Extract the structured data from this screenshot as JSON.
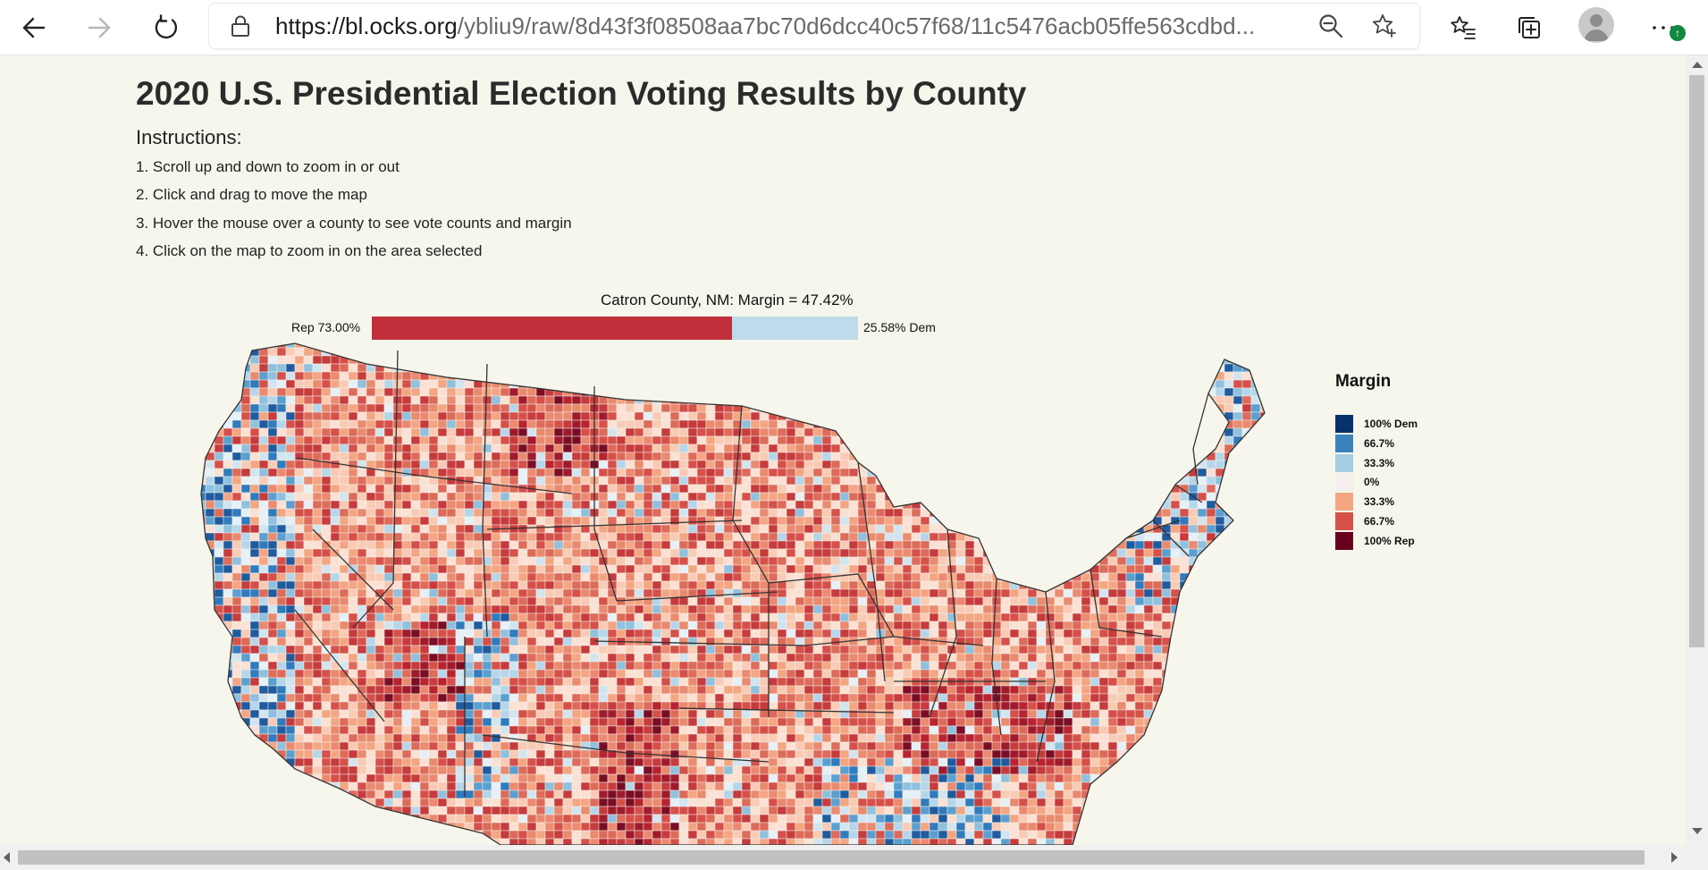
{
  "browser": {
    "url_host": "https://bl.ocks.org",
    "url_path": "/ybliu9/raw/8d43f3f08508aa7bc70d6dcc40c57f68/11c5476acb05ffe563cdbd...",
    "colors": {
      "toolbar_bg": "#ffffff",
      "update_badge": "#10893e"
    }
  },
  "page": {
    "title": "2020 U.S. Presidential Election Voting Results by County",
    "instructions_heading": "Instructions:",
    "instructions": [
      "1. Scroll up and down to zoom in or out",
      "2. Click and drag to move the map",
      "3. Hover the mouse over a county to see vote counts and margin",
      "4. Click on the map to zoom in on the area selected"
    ]
  },
  "tooltip": {
    "title": "Catron County, NM: Margin = 47.42%",
    "rep_label": "Rep 73.00%",
    "dem_label": "25.58% Dem",
    "rep_pct": 73.0,
    "dem_pct": 25.58,
    "rep_color": "#c1303a",
    "dem_color": "#bddbea"
  },
  "legend": {
    "title": "Margin",
    "items": [
      {
        "label": "100% Dem",
        "color": "#08306b"
      },
      {
        "label": "66.7%",
        "color": "#3b82bd"
      },
      {
        "label": "33.3%",
        "color": "#a5cde3"
      },
      {
        "label": "0%",
        "color": "#f5eeed"
      },
      {
        "label": "33.3%",
        "color": "#f4a582"
      },
      {
        "label": "66.7%",
        "color": "#d6504a"
      },
      {
        "label": "100% Rep",
        "color": "#67001f"
      }
    ]
  }
}
